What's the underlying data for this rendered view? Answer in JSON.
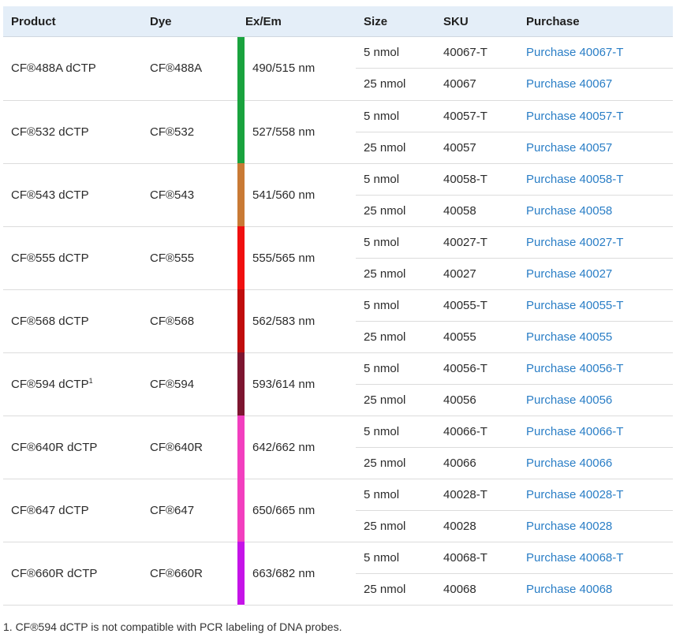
{
  "headers": {
    "product": "Product",
    "dye": "Dye",
    "exem": "Ex/Em",
    "size": "Size",
    "sku": "SKU",
    "purchase": "Purchase"
  },
  "rows": [
    {
      "product": "CF®488A dCTP",
      "sup": "",
      "dye": "CF®488A",
      "exem": "490/515 nm",
      "color": "#1aa33e",
      "variants": [
        {
          "size": "5 nmol",
          "sku": "40067-T",
          "purchase": "Purchase 40067-T"
        },
        {
          "size": "25 nmol",
          "sku": "40067",
          "purchase": "Purchase 40067"
        }
      ]
    },
    {
      "product": "CF®532 dCTP",
      "sup": "",
      "dye": "CF®532",
      "exem": "527/558 nm",
      "color": "#1aa33e",
      "variants": [
        {
          "size": "5 nmol",
          "sku": "40057-T",
          "purchase": "Purchase 40057-T"
        },
        {
          "size": "25 nmol",
          "sku": "40057",
          "purchase": "Purchase 40057"
        }
      ]
    },
    {
      "product": "CF®543 dCTP",
      "sup": "",
      "dye": "CF®543",
      "exem": "541/560 nm",
      "color": "#c97a35",
      "variants": [
        {
          "size": "5 nmol",
          "sku": "40058-T",
          "purchase": "Purchase 40058-T"
        },
        {
          "size": "25 nmol",
          "sku": "40058",
          "purchase": "Purchase 40058"
        }
      ]
    },
    {
      "product": "CF®555 dCTP",
      "sup": "",
      "dye": "CF®555",
      "exem": "555/565 nm",
      "color": "#f01010",
      "variants": [
        {
          "size": "5 nmol",
          "sku": "40027-T",
          "purchase": "Purchase 40027-T"
        },
        {
          "size": "25 nmol",
          "sku": "40027",
          "purchase": "Purchase 40027"
        }
      ]
    },
    {
      "product": "CF®568 dCTP",
      "sup": "",
      "dye": "CF®568",
      "exem": "562/583 nm",
      "color": "#c00d0d",
      "variants": [
        {
          "size": "5 nmol",
          "sku": "40055-T",
          "purchase": "Purchase 40055-T"
        },
        {
          "size": "25 nmol",
          "sku": "40055",
          "purchase": "Purchase 40055"
        }
      ]
    },
    {
      "product": "CF®594 dCTP",
      "sup": "1",
      "dye": "CF®594",
      "exem": "593/614 nm",
      "color": "#7d1530",
      "variants": [
        {
          "size": "5 nmol",
          "sku": "40056-T",
          "purchase": "Purchase 40056-T"
        },
        {
          "size": "25 nmol",
          "sku": "40056",
          "purchase": "Purchase 40056"
        }
      ]
    },
    {
      "product": "CF®640R dCTP",
      "sup": "",
      "dye": "CF®640R",
      "exem": "642/662 nm",
      "color": "#f23fbf",
      "variants": [
        {
          "size": "5 nmol",
          "sku": "40066-T",
          "purchase": "Purchase 40066-T"
        },
        {
          "size": "25 nmol",
          "sku": "40066",
          "purchase": "Purchase 40066"
        }
      ]
    },
    {
      "product": "CF®647 dCTP",
      "sup": "",
      "dye": "CF®647",
      "exem": "650/665 nm",
      "color": "#f23fbf",
      "variants": [
        {
          "size": "5 nmol",
          "sku": "40028-T",
          "purchase": "Purchase 40028-T"
        },
        {
          "size": "25 nmol",
          "sku": "40028",
          "purchase": "Purchase 40028"
        }
      ]
    },
    {
      "product": "CF®660R dCTP",
      "sup": "",
      "dye": "CF®660R",
      "exem": "663/682 nm",
      "color": "#c514e8",
      "variants": [
        {
          "size": "5 nmol",
          "sku": "40068-T",
          "purchase": "Purchase 40068-T"
        },
        {
          "size": "25 nmol",
          "sku": "40068",
          "purchase": "Purchase 40068"
        }
      ]
    }
  ],
  "footnote": "1. CF®594 dCTP is not compatible with PCR labeling of DNA probes.",
  "colors": {
    "link": "#2a7ec6",
    "header_bg": "#e4eef8"
  }
}
